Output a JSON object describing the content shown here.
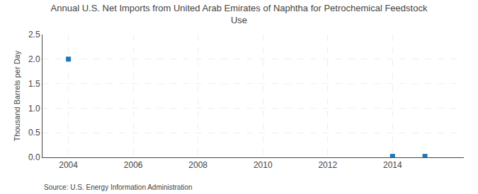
{
  "chart_data": {
    "type": "scatter",
    "title": "Annual U.S. Net Imports from United Arab Emirates of Naphtha for Petrochemical Feedstock\nUse",
    "ylabel": "Thousand Barrels per Day",
    "annotations": [
      "Source: U.S. Energy Information Administration"
    ],
    "x": [
      2004,
      2014,
      2015
    ],
    "values": [
      2.0,
      0.02,
      0.02
    ],
    "marker": "square",
    "xlim": [
      2003.2,
      2016.2
    ],
    "ylim": [
      0.0,
      2.5
    ],
    "xticks": [
      2004,
      2006,
      2008,
      2010,
      2012,
      2014
    ],
    "yticks": [
      {
        "value": 0.0,
        "label": "0.0"
      },
      0.5,
      {
        "value": 1.0,
        "label": "1.0"
      },
      1.5,
      {
        "value": 2.0,
        "label": "2.0"
      },
      2.5
    ],
    "grid": true
  }
}
